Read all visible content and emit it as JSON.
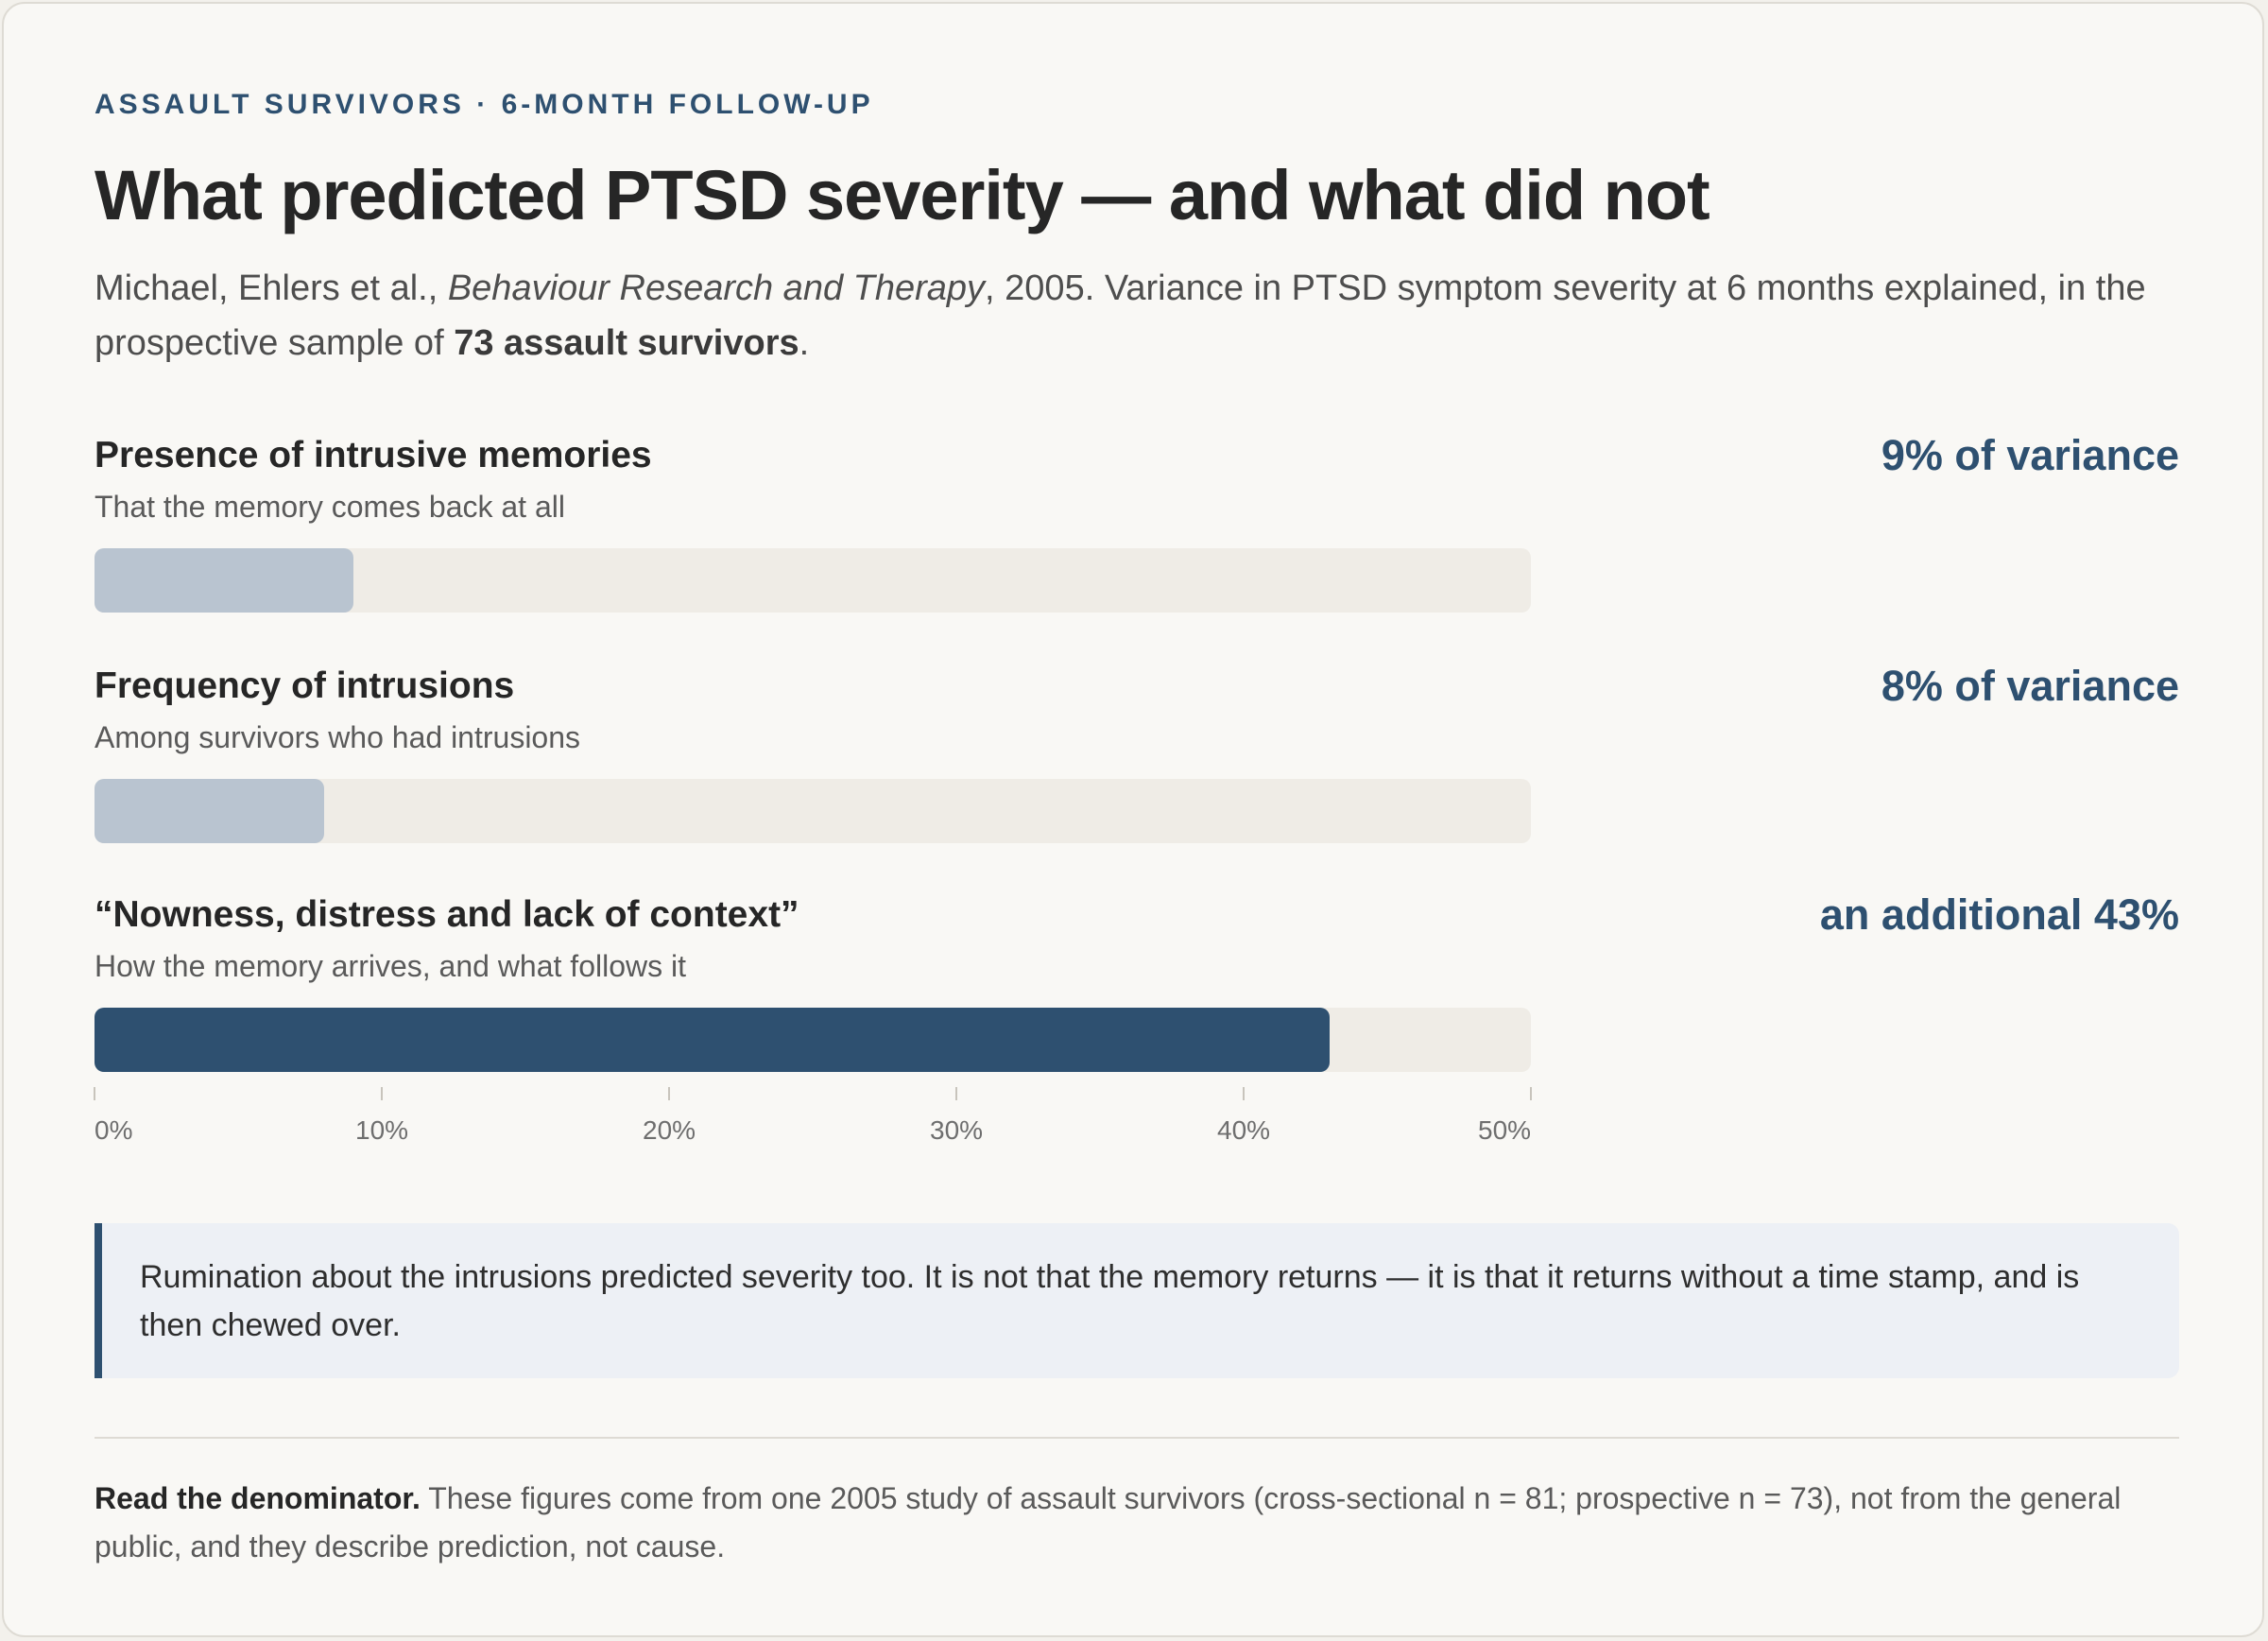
{
  "header": {
    "eyebrow": "ASSAULT SURVIVORS · 6-MONTH FOLLOW-UP",
    "title": "What predicted PTSD severity — and what did not",
    "subtitle_authors": "Michael, Ehlers et al., ",
    "subtitle_journal": "Behaviour Research and Therapy",
    "subtitle_mid": ", 2005. Variance in PTSD symptom severity at 6 months explained, in the prospective sample of ",
    "subtitle_sample": "73 assault survivors",
    "subtitle_end": "."
  },
  "chart_data": {
    "type": "bar",
    "orientation": "horizontal",
    "categories": [
      "Presence of intrusive memories",
      "Frequency of intrusions",
      "“Nowness, distress and lack of context”"
    ],
    "subtitles": [
      "That the memory comes back at all",
      "Among survivors who had intrusions",
      "How the memory arrives, and what follows it"
    ],
    "value_labels": [
      "9% of variance",
      "8% of variance",
      "an additional 43%"
    ],
    "values": [
      9,
      8,
      43
    ],
    "emphasis": [
      "muted",
      "muted",
      "strong"
    ],
    "xlim": [
      0,
      50
    ],
    "xticks": [
      0,
      10,
      20,
      30,
      40,
      50
    ],
    "xtick_labels": [
      "0%",
      "10%",
      "20%",
      "30%",
      "40%",
      "50%"
    ],
    "grid": false,
    "colors": {
      "muted": "#b9c4d0",
      "strong": "#2e5070",
      "track": "#efece6"
    }
  },
  "callout": {
    "text": "Rumination about the intrusions predicted severity too. It is not that the memory returns — it is that it returns without a time stamp, and is then chewed over."
  },
  "footnote": {
    "lead": "Read the denominator.",
    "text": " These figures come from one 2005 study of assault survivors (cross-sectional n = 81; prospective n = 73), not from the general public, and they describe prediction, not cause."
  }
}
